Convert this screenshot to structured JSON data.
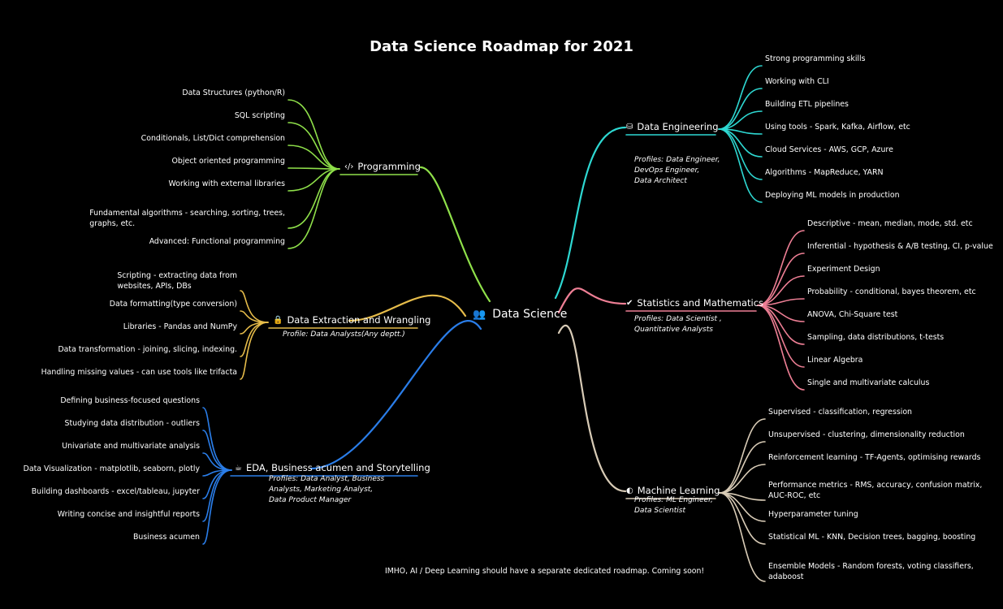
{
  "title": "Data Science Roadmap for 2021",
  "center": {
    "label": "Data Science",
    "icon": "people-icon"
  },
  "footnote": "IMHO, AI / Deep Learning should have a separate dedicated roadmap. Coming soon!",
  "branches": [
    {
      "id": "programming",
      "label": "Programming",
      "icon": "code-icon",
      "color": "#8fe04a",
      "items": [
        "Data Structures (python/R)",
        "SQL scripting",
        "Conditionals, List/Dict comprehension",
        "Object oriented programming",
        "Working with external libraries",
        "Fundamental algorithms - searching, sorting, trees,\ngraphs, etc.",
        "Advanced: Functional programming"
      ]
    },
    {
      "id": "extraction",
      "label": "Data Extraction and Wrangling",
      "icon": "lock-icon",
      "color": "#e6bc4a",
      "profile": "Profile: Data Analysts(Any deptt.)",
      "items": [
        "Scripting - extracting data from\nwebsites, APIs, DBs",
        "Data formatting(type conversion)",
        "Libraries - Pandas and NumPy",
        "Data transformation - joining, slicing, indexing.",
        "Handling missing values - can use tools like trifacta"
      ]
    },
    {
      "id": "eda",
      "label": "EDA, Business acumen and Storytelling",
      "icon": "ko-fi-icon",
      "color": "#2a7de8",
      "profile": "Profiles: Data Analyst, Business\nAnalysts, Marketing Analyst,\nData Product Manager",
      "items": [
        "Defining business-focused questions",
        "Studying data distribution - outliers",
        "Univariate and multivariate analysis",
        "Data Visualization - matplotlib, seaborn, plotly",
        "Building dashboards - excel/tableau, jupyter",
        "Writing concise and insightful reports",
        "Business acumen"
      ]
    },
    {
      "id": "engineering",
      "label": "Data Engineering",
      "icon": "database-icon",
      "color": "#2ed8d2",
      "profile": "Profiles: Data Engineer,\nDevOps Engineer,\nData Architect",
      "items": [
        "Strong programming skills",
        "Working with CLI",
        "Building ETL pipelines",
        "Using tools - Spark, Kafka, Airflow, etc",
        "Cloud Services - AWS, GCP, Azure",
        "Algorithms - MapReduce, YARN",
        "Deploying ML models in production"
      ]
    },
    {
      "id": "statistics",
      "label": "Statistics and Mathematics",
      "icon": "check-circle-icon",
      "color": "#ee7f95",
      "profile": "Profiles: Data Scientist ,\nQuantitative Analysts",
      "items": [
        "Descriptive - mean, median, mode, std. etc",
        "Inferential - hypothesis & A/B testing, CI, p-value",
        "Experiment Design",
        "Probability - conditional, bayes theorem, etc",
        "ANOVA, Chi-Square test",
        "Sampling, data distributions, t-tests",
        "Linear Algebra",
        "Single and multivariate calculus"
      ]
    },
    {
      "id": "ml",
      "label": "Machine Learning",
      "icon": "brain-icon",
      "color": "#d8cbb6",
      "profile": "Profiles: ML Engineer,\nData Scientist",
      "items": [
        "Supervised - classification, regression",
        "Unsupervised - clustering, dimensionality reduction",
        "Reinforcement learning - TF-Agents, optimising rewards",
        "Performance metrics - RMS, accuracy, confusion matrix,\nAUC-ROC, etc",
        "Hyperparameter tuning",
        "Statistical ML - KNN, Decision trees, bagging, boosting",
        "Ensemble Models - Random forests, voting classifiers,\nadaboost"
      ]
    }
  ]
}
